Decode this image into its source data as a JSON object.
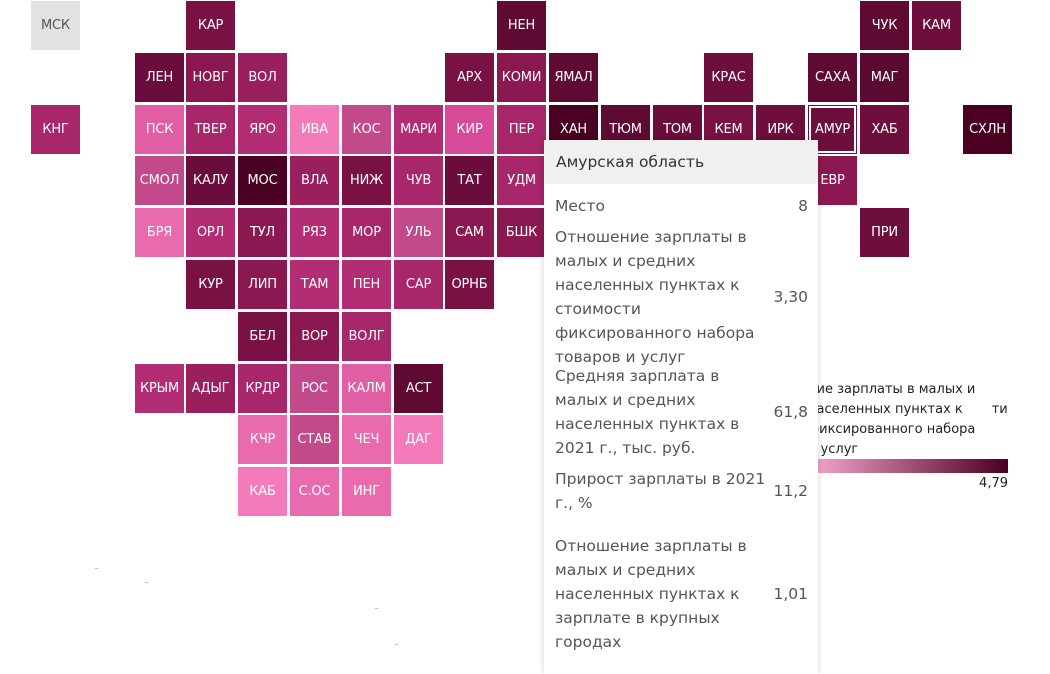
{
  "legend": {
    "title": "ние зарплаты в малых и       населенных пунктах к       ти фиксированного набора       и услуг",
    "max": "4,79",
    "color_low": "#f7a8cf",
    "color_high": "#4a0020"
  },
  "tooltip": {
    "title": "Амурская область",
    "rows": [
      {
        "label": "Место",
        "value": "8"
      },
      {
        "label": "Отношение зарплаты в малых и средних населенных пунктах к стоимости фиксированного набора товаров и услуг",
        "value": "3,30"
      },
      {
        "label": "Средняя зарплата в малых и средних населенных пунктах в 2021 г., тыс. руб.",
        "value": "61,8"
      },
      {
        "label": "Прирост зарплаты в 2021 г., %",
        "value": "11,2"
      },
      {
        "label": "Отношение зарплаты в малых и средних населенных пунктах к зарплате в крупных городах",
        "value": "1,01"
      }
    ]
  },
  "tiles": [
    {
      "label": "МСК",
      "col": 0,
      "row": 0,
      "color": "#e2e2e2",
      "no_data": true
    },
    {
      "label": "КАР",
      "col": 3,
      "row": 0,
      "color": "#7a1145"
    },
    {
      "label": "НЕН",
      "col": 9,
      "row": 0,
      "color": "#5e0a33"
    },
    {
      "label": "ЧУК",
      "col": 16,
      "row": 0,
      "color": "#5e0a33"
    },
    {
      "label": "КАМ",
      "col": 17,
      "row": 0,
      "color": "#6d0e3d"
    },
    {
      "label": "ЛЕН",
      "col": 2,
      "row": 1,
      "color": "#6b0d3c"
    },
    {
      "label": "НОВГ",
      "col": 3,
      "row": 1,
      "color": "#8c1852"
    },
    {
      "label": "ВОЛ",
      "col": 4,
      "row": 1,
      "color": "#9a1f5d"
    },
    {
      "label": "АРХ",
      "col": 8,
      "row": 1,
      "color": "#7a1145"
    },
    {
      "label": "КОМИ",
      "col": 9,
      "row": 1,
      "color": "#8c1852"
    },
    {
      "label": "ЯМАЛ",
      "col": 10,
      "row": 1,
      "color": "#5e0a33"
    },
    {
      "label": "КРАС",
      "col": 13,
      "row": 1,
      "color": "#6d0e3d"
    },
    {
      "label": "САХА",
      "col": 15,
      "row": 1,
      "color": "#5e0a33"
    },
    {
      "label": "МАГ",
      "col": 16,
      "row": 1,
      "color": "#5a0930"
    },
    {
      "label": "КНГ",
      "col": 0,
      "row": 2,
      "color": "#a8266a"
    },
    {
      "label": "ПСК",
      "col": 2,
      "row": 2,
      "color": "#e05ea3"
    },
    {
      "label": "ТВЕР",
      "col": 3,
      "row": 2,
      "color": "#a8266a"
    },
    {
      "label": "ЯРО",
      "col": 4,
      "row": 2,
      "color": "#b22d73"
    },
    {
      "label": "ИВА",
      "col": 5,
      "row": 2,
      "color": "#f37bba"
    },
    {
      "label": "КОС",
      "col": 6,
      "row": 2,
      "color": "#c24a8b"
    },
    {
      "label": "МАРИ",
      "col": 7,
      "row": 2,
      "color": "#b22d73"
    },
    {
      "label": "КИР",
      "col": 8,
      "row": 2,
      "color": "#d64a97"
    },
    {
      "label": "ПЕР",
      "col": 9,
      "row": 2,
      "color": "#a8266a"
    },
    {
      "label": "ХАН",
      "col": 10,
      "row": 2,
      "color": "#4a0020"
    },
    {
      "label": "ТЮМ",
      "col": 11,
      "row": 2,
      "color": "#5e0a33"
    },
    {
      "label": "ТОМ",
      "col": 12,
      "row": 2,
      "color": "#6b0d3c"
    },
    {
      "label": "КЕМ",
      "col": 13,
      "row": 2,
      "color": "#7a1145"
    },
    {
      "label": "ИРК",
      "col": 14,
      "row": 2,
      "color": "#6d0e3d"
    },
    {
      "label": "АМУР",
      "col": 15,
      "row": 2,
      "color": "#6d0e3d",
      "selected": true
    },
    {
      "label": "ХАБ",
      "col": 16,
      "row": 2,
      "color": "#6d0e3d"
    },
    {
      "label": "СХЛН",
      "col": 18,
      "row": 2,
      "color": "#4a0020"
    },
    {
      "label": "СМОЛ",
      "col": 2,
      "row": 3,
      "color": "#c24a8b"
    },
    {
      "label": "КАЛУ",
      "col": 3,
      "row": 3,
      "color": "#6b0d3c"
    },
    {
      "label": "МОС",
      "col": 4,
      "row": 3,
      "color": "#4a0020"
    },
    {
      "label": "ВЛА",
      "col": 5,
      "row": 3,
      "color": "#9a1f5d"
    },
    {
      "label": "НИЖ",
      "col": 6,
      "row": 3,
      "color": "#7a1145"
    },
    {
      "label": "ЧУВ",
      "col": 7,
      "row": 3,
      "color": "#a8266a"
    },
    {
      "label": "ТАТ",
      "col": 8,
      "row": 3,
      "color": "#6b0d3c"
    },
    {
      "label": "УДМ",
      "col": 9,
      "row": 3,
      "color": "#a8266a"
    },
    {
      "label": "ЕВР",
      "col": 15,
      "row": 3,
      "color": "#8c1852"
    },
    {
      "label": "БРЯ",
      "col": 2,
      "row": 4,
      "color": "#ea6aae"
    },
    {
      "label": "ОРЛ",
      "col": 3,
      "row": 4,
      "color": "#b22d73"
    },
    {
      "label": "ТУЛ",
      "col": 4,
      "row": 4,
      "color": "#8c1852"
    },
    {
      "label": "РЯЗ",
      "col": 5,
      "row": 4,
      "color": "#b22d73"
    },
    {
      "label": "МОР",
      "col": 6,
      "row": 4,
      "color": "#a8266a"
    },
    {
      "label": "УЛЬ",
      "col": 7,
      "row": 4,
      "color": "#c24a8b"
    },
    {
      "label": "САМ",
      "col": 8,
      "row": 4,
      "color": "#8c1852"
    },
    {
      "label": "БШК",
      "col": 9,
      "row": 4,
      "color": "#8c1852"
    },
    {
      "label": "ПРИ",
      "col": 16,
      "row": 4,
      "color": "#6d0e3d"
    },
    {
      "label": "КУР",
      "col": 3,
      "row": 5,
      "color": "#7a1145"
    },
    {
      "label": "ЛИП",
      "col": 4,
      "row": 5,
      "color": "#8c1852"
    },
    {
      "label": "ТАМ",
      "col": 5,
      "row": 5,
      "color": "#b22d73"
    },
    {
      "label": "ПЕН",
      "col": 6,
      "row": 5,
      "color": "#b22d73"
    },
    {
      "label": "САР",
      "col": 7,
      "row": 5,
      "color": "#a8266a"
    },
    {
      "label": "ОРНБ",
      "col": 8,
      "row": 5,
      "color": "#7a1145"
    },
    {
      "label": "БЕЛ",
      "col": 4,
      "row": 6,
      "color": "#7a1145"
    },
    {
      "label": "ВОР",
      "col": 5,
      "row": 6,
      "color": "#8c1852"
    },
    {
      "label": "ВОЛГ",
      "col": 6,
      "row": 6,
      "color": "#a8266a"
    },
    {
      "label": "КРЫМ",
      "col": 2,
      "row": 7,
      "color": "#b22d73"
    },
    {
      "label": "АДЫГ",
      "col": 3,
      "row": 7,
      "color": "#9a1f5d"
    },
    {
      "label": "КРДР",
      "col": 4,
      "row": 7,
      "color": "#a8266a"
    },
    {
      "label": "РОС",
      "col": 5,
      "row": 7,
      "color": "#c24a8b"
    },
    {
      "label": "КАЛМ",
      "col": 6,
      "row": 7,
      "color": "#e05ea3"
    },
    {
      "label": "АСТ",
      "col": 7,
      "row": 7,
      "color": "#5e0a33"
    },
    {
      "label": "КЧР",
      "col": 4,
      "row": 8,
      "color": "#ea6aae"
    },
    {
      "label": "СТАВ",
      "col": 5,
      "row": 8,
      "color": "#c24a8b"
    },
    {
      "label": "ЧЕЧ",
      "col": 6,
      "row": 8,
      "color": "#ea6aae"
    },
    {
      "label": "ДАГ",
      "col": 7,
      "row": 8,
      "color": "#f37bba"
    },
    {
      "label": "КАБ",
      "col": 4,
      "row": 9,
      "color": "#f37bba"
    },
    {
      "label": "С.ОС",
      "col": 5,
      "row": 9,
      "color": "#ea6aae"
    },
    {
      "label": "ИНГ",
      "col": 6,
      "row": 9,
      "color": "#ea6aae"
    }
  ]
}
